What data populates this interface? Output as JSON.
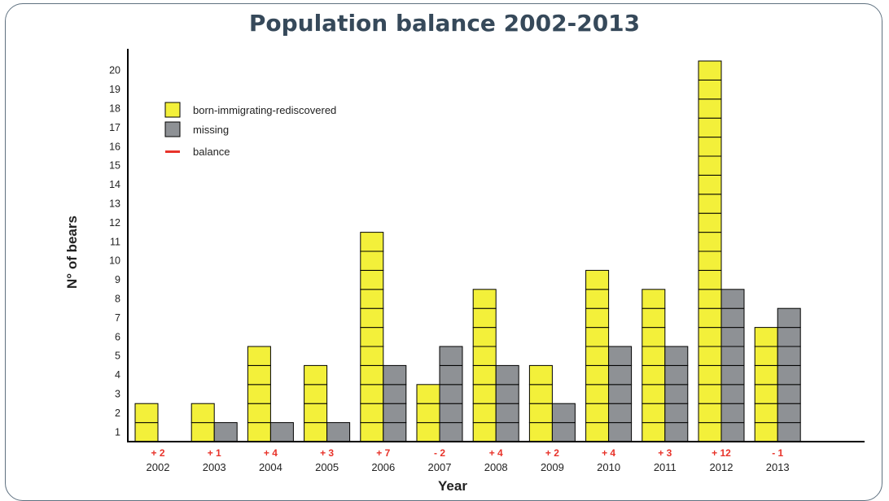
{
  "chart_data": {
    "type": "bar",
    "title": "Population balance 2002-2013",
    "xlabel": "Year",
    "ylabel": "N° of bears",
    "categories": [
      "2002",
      "2003",
      "2004",
      "2005",
      "2006",
      "2007",
      "2008",
      "2009",
      "2010",
      "2011",
      "2012",
      "2013"
    ],
    "series": [
      {
        "name": "born-immigrating-rediscovered",
        "color": "#f3f03a",
        "values": [
          2,
          2,
          5,
          4,
          11,
          3,
          8,
          4,
          9,
          8,
          20,
          6
        ]
      },
      {
        "name": "missing",
        "color": "#8e9195",
        "values": [
          0,
          1,
          1,
          1,
          4,
          5,
          4,
          2,
          5,
          5,
          8,
          7
        ]
      }
    ],
    "balance_label": "balance",
    "balance_color": "#e8332a",
    "balance": [
      "+ 2",
      "+ 1",
      "+ 4",
      "+ 3",
      "+ 7",
      "- 2",
      "+ 4",
      "+ 2",
      "+ 4",
      "+ 3",
      "+ 12",
      "- 1"
    ],
    "yticks": [
      "1",
      "2",
      "3",
      "4",
      "5",
      "6",
      "7",
      "8",
      "9",
      "10",
      "11",
      "12",
      "13",
      "14",
      "15",
      "16",
      "17",
      "18",
      "19",
      "20"
    ],
    "ylim": [
      0,
      20
    ],
    "grid": false,
    "legend_position": "top-left"
  }
}
